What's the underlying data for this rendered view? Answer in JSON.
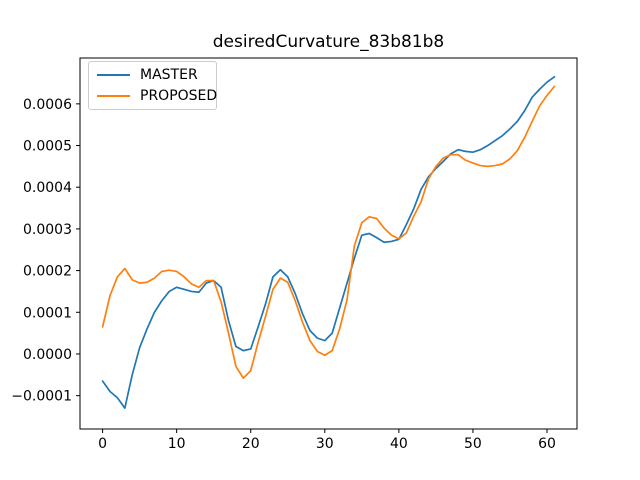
{
  "chart_data": {
    "type": "line",
    "title": "desiredCurvature_83b81b8",
    "xlabel": "",
    "ylabel": "",
    "grid": false,
    "legend_position": "upper left",
    "xlim": [
      -3.05,
      64.05
    ],
    "ylim": [
      -0.00018,
      0.00071
    ],
    "x_ticks": [
      {
        "value": 0,
        "label": "0"
      },
      {
        "value": 10,
        "label": "10"
      },
      {
        "value": 20,
        "label": "20"
      },
      {
        "value": 30,
        "label": "30"
      },
      {
        "value": 40,
        "label": "40"
      },
      {
        "value": 50,
        "label": "50"
      },
      {
        "value": 60,
        "label": "60"
      }
    ],
    "y_ticks": [
      {
        "value": -0.0001,
        "label": "−0.0001"
      },
      {
        "value": 0.0,
        "label": "0.0000"
      },
      {
        "value": 0.0001,
        "label": "0.0001"
      },
      {
        "value": 0.0002,
        "label": "0.0002"
      },
      {
        "value": 0.0003,
        "label": "0.0003"
      },
      {
        "value": 0.0004,
        "label": "0.0004"
      },
      {
        "value": 0.0005,
        "label": "0.0005"
      },
      {
        "value": 0.0006,
        "label": "0.0006"
      }
    ],
    "x": [
      0,
      1,
      2,
      3,
      4,
      5,
      6,
      7,
      8,
      9,
      10,
      11,
      12,
      13,
      14,
      15,
      16,
      17,
      18,
      19,
      20,
      21,
      22,
      23,
      24,
      25,
      26,
      27,
      28,
      29,
      30,
      31,
      32,
      33,
      34,
      35,
      36,
      37,
      38,
      39,
      40,
      41,
      42,
      43,
      44,
      45,
      46,
      47,
      48,
      49,
      50,
      51,
      52,
      53,
      54,
      55,
      56,
      57,
      58,
      59,
      60,
      61
    ],
    "series": [
      {
        "name": "MASTER",
        "color": "#1f77b4",
        "values": [
          -6.5e-05,
          -9e-05,
          -0.000105,
          -0.00013,
          -5e-05,
          1.5e-05,
          6e-05,
          0.0001,
          0.000128,
          0.00015,
          0.00016,
          0.000155,
          0.00015,
          0.000148,
          0.00017,
          0.000176,
          0.00016,
          8e-05,
          1.8e-05,
          8e-06,
          1.2e-05,
          6.5e-05,
          0.00012,
          0.000185,
          0.000202,
          0.000185,
          0.000145,
          9.6e-05,
          5.6e-05,
          3.8e-05,
          3.2e-05,
          5e-05,
          0.00011,
          0.00017,
          0.00023,
          0.000285,
          0.000289,
          0.000279,
          0.000268,
          0.00027,
          0.000275,
          0.00031,
          0.000348,
          0.000395,
          0.000425,
          0.000445,
          0.000462,
          0.00048,
          0.00049,
          0.000486,
          0.000484,
          0.00049,
          0.0005,
          0.000512,
          0.000524,
          0.00054,
          0.000558,
          0.000584,
          0.000616,
          0.000635,
          0.000652,
          0.000665
        ]
      },
      {
        "name": "PROPOSED",
        "color": "#ff7f0e",
        "values": [
          6.5e-05,
          0.00014,
          0.000185,
          0.000205,
          0.000178,
          0.00017,
          0.000172,
          0.000182,
          0.000198,
          0.000201,
          0.000198,
          0.000185,
          0.000168,
          0.00016,
          0.000176,
          0.000176,
          0.000125,
          5e-05,
          -3e-05,
          -5.8e-05,
          -4e-05,
          2.8e-05,
          9e-05,
          0.000155,
          0.000182,
          0.000172,
          0.000128,
          7.6e-05,
          3.2e-05,
          6e-06,
          -3e-06,
          8e-06,
          6e-05,
          0.00013,
          0.00026,
          0.000315,
          0.000329,
          0.000325,
          0.000302,
          0.000285,
          0.000276,
          0.00029,
          0.00033,
          0.000365,
          0.00042,
          0.00045,
          0.00047,
          0.000478,
          0.000478,
          0.000465,
          0.000458,
          0.000452,
          0.00045,
          0.000452,
          0.000456,
          0.000468,
          0.000488,
          0.00052,
          0.000558,
          0.000595,
          0.00062,
          0.000642
        ]
      }
    ]
  }
}
